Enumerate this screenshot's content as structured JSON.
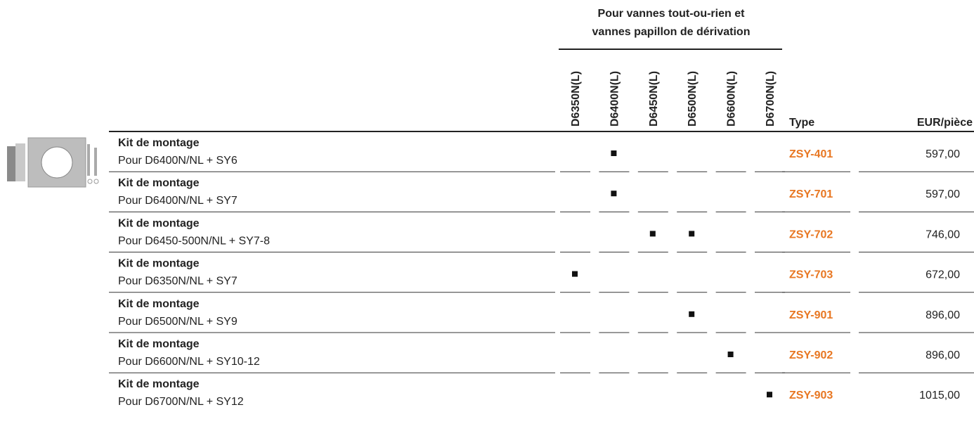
{
  "header": {
    "group": [
      "Pour vannes tout-ou-rien et",
      "vannes papillon de dérivation"
    ],
    "columns": [
      "D6350N(L)",
      "D6400N(L)",
      "D6450N(L)",
      "D6500N(L)",
      "D6600N(L)",
      "D6700N(L)"
    ],
    "type": "Type",
    "price": "EUR/pièce"
  },
  "rows": [
    {
      "title": "Kit de montage",
      "subtitle": "Pour D6400N/NL + SY6",
      "checks": [
        false,
        true,
        false,
        false,
        false,
        false
      ],
      "type": "ZSY-401",
      "price": "597,00"
    },
    {
      "title": "Kit de montage",
      "subtitle": "Pour D6400N/NL + SY7",
      "checks": [
        false,
        true,
        false,
        false,
        false,
        false
      ],
      "type": "ZSY-701",
      "price": "597,00"
    },
    {
      "title": "Kit de montage",
      "subtitle": "Pour D6450-500N/NL + SY7-8",
      "checks": [
        false,
        false,
        true,
        true,
        false,
        false
      ],
      "type": "ZSY-702",
      "price": "746,00"
    },
    {
      "title": "Kit de montage",
      "subtitle": "Pour D6350N/NL + SY7",
      "checks": [
        true,
        false,
        false,
        false,
        false,
        false
      ],
      "type": "ZSY-703",
      "price": "672,00"
    },
    {
      "title": "Kit de montage",
      "subtitle": "Pour D6500N/NL + SY9",
      "checks": [
        false,
        false,
        false,
        true,
        false,
        false
      ],
      "type": "ZSY-901",
      "price": "896,00"
    },
    {
      "title": "Kit de montage",
      "subtitle": "Pour D6600N/NL + SY10-12",
      "checks": [
        false,
        false,
        false,
        false,
        true,
        false
      ],
      "type": "ZSY-902",
      "price": "896,00"
    },
    {
      "title": "Kit de montage",
      "subtitle": "Pour D6700N/NL + SY12",
      "checks": [
        false,
        false,
        false,
        false,
        false,
        true
      ],
      "type": "ZSY-903",
      "price": "1015,00"
    }
  ]
}
